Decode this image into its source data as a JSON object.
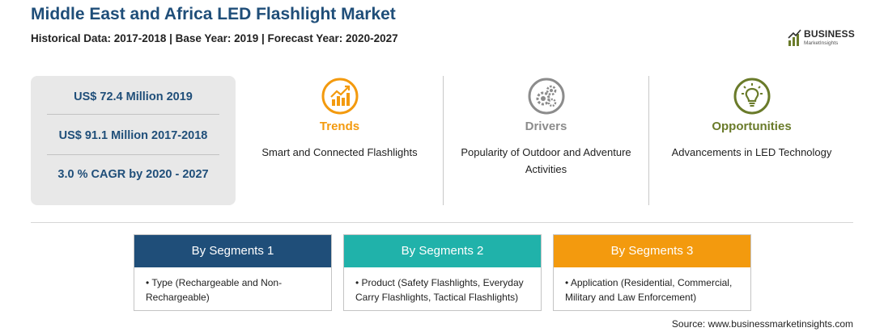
{
  "header": {
    "title": "Middle East and Africa LED Flashlight Market",
    "subtitle": "Historical Data: 2017-2018 | Base Year: 2019 | Forecast Year: 2020-2027"
  },
  "logo": {
    "name": "BUSINESS",
    "tagline": "MarketInsights"
  },
  "stats": [
    "US$ 72.4 Million 2019",
    "US$ 91.1 Million 2017-2018",
    "3.0 % CAGR by 2020 - 2027"
  ],
  "columns": [
    {
      "icon": "trend-chart-icon",
      "heading": "Trends",
      "text": "Smart and Connected Flashlights",
      "color": "#f39a0e"
    },
    {
      "icon": "gears-icon",
      "heading": "Drivers",
      "text": "Popularity of Outdoor and Adventure Activities",
      "color": "#8c8c8c"
    },
    {
      "icon": "lightbulb-icon",
      "heading": "Opportunities",
      "text": "Advancements in LED Technology",
      "color": "#6a7b2a"
    }
  ],
  "segments": [
    {
      "title": "By Segments 1",
      "item": "• Type (Rechargeable and Non-Rechargeable)",
      "color": "#1f4e79"
    },
    {
      "title": "By Segments 2",
      "item": "• Product (Safety Flashlights, Everyday Carry Flashlights, Tactical Flashlights)",
      "color": "#20b2aa"
    },
    {
      "title": "By Segments 3",
      "item": "• Application (Residential, Commercial, Military and Law Enforcement)",
      "color": "#f39a0e"
    }
  ],
  "source": "Source: www.businessmarketinsights.com"
}
